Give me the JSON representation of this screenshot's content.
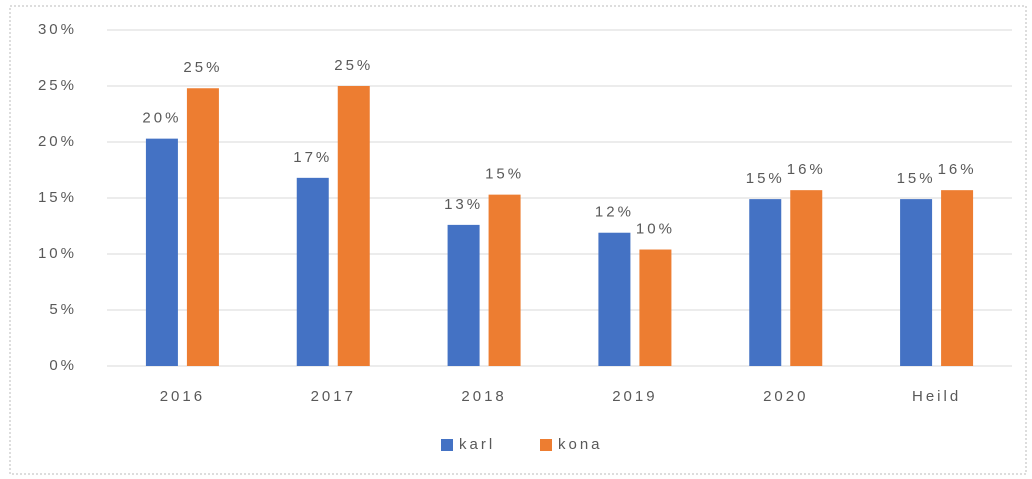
{
  "chart_data": {
    "type": "bar",
    "categories": [
      "2016",
      "2017",
      "2018",
      "2019",
      "2020",
      "Heild"
    ],
    "series": [
      {
        "name": "karl",
        "color": "#4472c4",
        "values": [
          20.3,
          16.8,
          12.6,
          11.9,
          14.9,
          14.9
        ],
        "value_labels": [
          "20%",
          "17%",
          "13%",
          "12%",
          "15%",
          "15%"
        ]
      },
      {
        "name": "kona",
        "color": "#ed7d31",
        "values": [
          24.8,
          25.0,
          15.3,
          10.4,
          15.7,
          15.7
        ],
        "value_labels": [
          "25%",
          "25%",
          "15%",
          "10%",
          "16%",
          "16%"
        ]
      }
    ],
    "ylim": [
      0,
      30
    ],
    "yticks": [
      {
        "value": 0,
        "label": "0%"
      },
      {
        "value": 5,
        "label": "5%"
      },
      {
        "value": 10,
        "label": "10%"
      },
      {
        "value": 15,
        "label": "15%"
      },
      {
        "value": 20,
        "label": "20%"
      },
      {
        "value": 25,
        "label": "25%"
      },
      {
        "value": 30,
        "label": "30%"
      }
    ],
    "grid": true,
    "legend": "bottom"
  }
}
